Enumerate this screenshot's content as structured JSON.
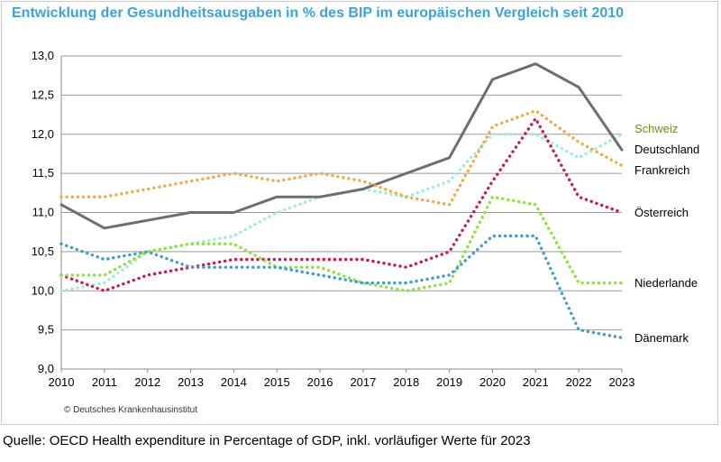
{
  "title": "Entwicklung der Gesundheitsausgaben in % des BIP im europäischen Vergleich seit 2010",
  "copyright": "© Deutsches Krankenhausinstitut",
  "source": "Quelle: OECD Health expenditure in Percentage of GDP, inkl. vorläufiger Werte für 2023",
  "chart_data": {
    "type": "line",
    "title": "Entwicklung der Gesundheitsausgaben in % des BIP im europäischen Vergleich seit 2010",
    "xlabel": "",
    "ylabel": "",
    "x": [
      2010,
      2011,
      2012,
      2013,
      2014,
      2015,
      2016,
      2017,
      2018,
      2019,
      2020,
      2021,
      2022,
      2023
    ],
    "ylim": [
      9.0,
      13.0
    ],
    "yticks": [
      "9,0",
      "9,5",
      "10,0",
      "10,5",
      "11,0",
      "11,5",
      "12,0",
      "12,5",
      "13,0"
    ],
    "grid": "horizontal",
    "legend": "series labels at right end of lines",
    "series": [
      {
        "name": "Schweiz",
        "color": "#9aeedd",
        "label_color": "#6b8e23",
        "style": "dotted",
        "values": [
          10.0,
          10.1,
          10.5,
          10.6,
          10.7,
          11.0,
          11.2,
          11.3,
          11.2,
          11.4,
          12.0,
          12.0,
          11.7,
          12.0
        ]
      },
      {
        "name": "Deutschland",
        "color": "#6e6e6e",
        "label_color": "#000000",
        "style": "solid",
        "values": [
          11.1,
          10.8,
          10.9,
          11.0,
          11.0,
          11.2,
          11.2,
          11.3,
          11.5,
          11.7,
          12.7,
          12.9,
          12.6,
          11.8
        ]
      },
      {
        "name": "Frankreich",
        "color": "#f5a742",
        "label_color": "#000000",
        "style": "dotted",
        "values": [
          11.2,
          11.2,
          11.3,
          11.4,
          11.5,
          11.4,
          11.5,
          11.4,
          11.2,
          11.1,
          12.1,
          12.3,
          11.9,
          11.6
        ]
      },
      {
        "name": "Österreich",
        "color": "#c8194f",
        "label_color": "#000000",
        "style": "dotted",
        "values": [
          10.2,
          10.0,
          10.2,
          10.3,
          10.4,
          10.4,
          10.4,
          10.4,
          10.3,
          10.5,
          11.4,
          12.2,
          11.2,
          11.0
        ]
      },
      {
        "name": "Niederlande",
        "color": "#8ee23a",
        "label_color": "#000000",
        "style": "dotted",
        "values": [
          10.2,
          10.2,
          10.5,
          10.6,
          10.6,
          10.3,
          10.3,
          10.1,
          10.0,
          10.1,
          11.2,
          11.1,
          10.1,
          10.1
        ]
      },
      {
        "name": "Dänemark",
        "color": "#3a9fd0",
        "label_color": "#000000",
        "style": "dotted",
        "values": [
          10.6,
          10.4,
          10.5,
          10.3,
          10.3,
          10.3,
          10.2,
          10.1,
          10.1,
          10.2,
          10.7,
          10.7,
          9.5,
          9.4
        ]
      }
    ]
  }
}
